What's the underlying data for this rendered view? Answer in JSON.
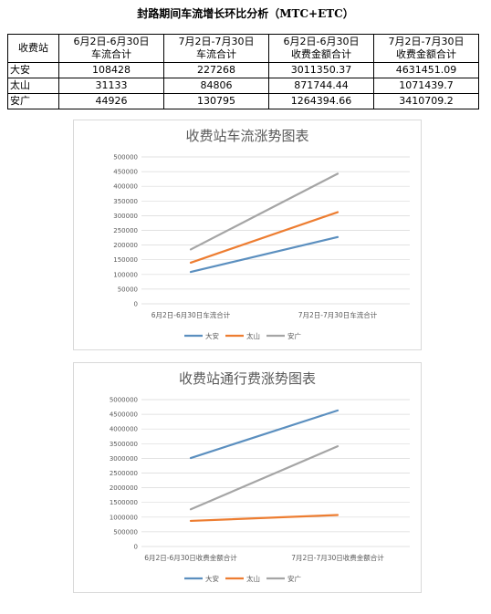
{
  "title": "封路期间车流增长环比分析（MTC+ETC）",
  "table": {
    "headers": [
      "收费站",
      "6月2日-6月30日\n车流合计",
      "7月2日-7月30日\n车流合计",
      "6月2日-6月30日\n收费金额合计",
      "7月2日-7月30日\n收费金额合计"
    ],
    "rows": [
      [
        "大安",
        "108428",
        "227268",
        "3011350.37",
        "4631451.09"
      ],
      [
        "太山",
        "31133",
        "84806",
        "871744.44",
        "1071439.7"
      ],
      [
        "安广",
        "44926",
        "130795",
        "1264394.66",
        "3410709.2"
      ]
    ]
  },
  "chart_data": [
    {
      "type": "line",
      "title": "收费站车流涨势图表",
      "categories": [
        "6月2日-6月30日车流合计",
        "7月2日-7月30日车流合计"
      ],
      "series": [
        {
          "name": "大安",
          "color": "#5b8fbf",
          "values": [
            108428,
            227268
          ]
        },
        {
          "name": "太山",
          "color": "#ed7d31",
          "values": [
            140000,
            312000
          ]
        },
        {
          "name": "安广",
          "color": "#a5a5a5",
          "values": [
            185000,
            443000
          ]
        }
      ],
      "ylim": [
        0,
        500000
      ],
      "yticks": [
        0,
        50000,
        100000,
        150000,
        200000,
        250000,
        300000,
        350000,
        400000,
        450000,
        500000
      ],
      "ytick_labels": [
        "0",
        "50000",
        "100000",
        "150000",
        "200000",
        "250000",
        "300000",
        "350000",
        "400000",
        "450000",
        "500000"
      ],
      "grid": true,
      "legend": "bottom"
    },
    {
      "type": "line",
      "title": "收费站通行费涨势图表",
      "categories": [
        "6月2日-6月30日收费金额合计",
        "7月2日-7月30日收费金额合计"
      ],
      "series": [
        {
          "name": "大安",
          "color": "#5b8fbf",
          "values": [
            3011350.37,
            4631451.09
          ]
        },
        {
          "name": "太山",
          "color": "#ed7d31",
          "values": [
            871744.44,
            1071439.7
          ]
        },
        {
          "name": "安广",
          "color": "#a5a5a5",
          "values": [
            1264394.66,
            3410709.2
          ]
        }
      ],
      "ylim": [
        0,
        5000000
      ],
      "yticks": [
        0,
        500000,
        1000000,
        1500000,
        2000000,
        2500000,
        3000000,
        3500000,
        4000000,
        4500000,
        5000000
      ],
      "ytick_labels": [
        "0",
        "500000",
        "1000000",
        "1500000",
        "2000000",
        "2500000",
        "3000000",
        "3500000",
        "4000000",
        "4500000",
        "5000000"
      ],
      "grid": true,
      "legend": "bottom"
    }
  ]
}
